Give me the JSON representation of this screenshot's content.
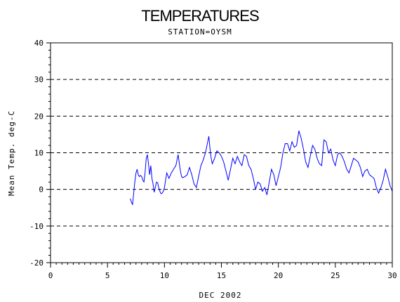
{
  "chart_data": {
    "type": "line",
    "title": "TEMPERATURES",
    "subtitle": "STATION=OYSM",
    "xlabel": "DEC 2002",
    "ylabel": "Mean Temp. deg-C",
    "xlim": [
      0,
      30
    ],
    "ylim": [
      -20,
      40
    ],
    "x_ticks": [
      0,
      5,
      10,
      15,
      20,
      25,
      30
    ],
    "x_tick_labels": [
      "0",
      "5",
      "10",
      "15",
      "20",
      "25",
      "30"
    ],
    "y_ticks": [
      -20,
      -10,
      0,
      10,
      20,
      30,
      40
    ],
    "y_tick_labels": [
      "-20",
      "-10",
      "0",
      "10",
      "20",
      "30",
      "40"
    ],
    "grid": "horizontal-dashed",
    "line_color": "#0000ff",
    "series": [
      {
        "x": [
          7.0,
          7.1,
          7.2,
          7.3,
          7.4,
          7.5,
          7.6,
          7.7,
          7.8,
          7.9,
          8.0,
          8.1,
          8.2,
          8.3,
          8.4,
          8.5,
          8.6,
          8.7,
          8.8,
          8.9,
          9.0,
          9.1,
          9.2,
          9.3,
          9.4,
          9.5,
          9.6,
          9.7,
          9.8,
          9.9,
          10.0,
          10.2,
          10.4,
          10.6,
          10.8,
          11.0,
          11.2,
          11.4,
          11.5,
          11.6,
          11.8,
          12.0,
          12.2,
          12.4,
          12.6,
          12.8,
          13.0,
          13.2,
          13.4,
          13.6,
          13.8,
          13.9,
          14.0,
          14.1,
          14.2,
          14.4,
          14.6,
          14.8,
          15.0,
          15.2,
          15.4,
          15.6,
          15.8,
          16.0,
          16.2,
          16.4,
          16.6,
          16.8,
          17.0,
          17.2,
          17.4,
          17.6,
          17.8,
          18.0,
          18.2,
          18.4,
          18.6,
          18.8,
          19.0,
          19.2,
          19.4,
          19.6,
          19.8,
          20.0,
          20.2,
          20.4,
          20.6,
          20.8,
          21.0,
          21.2,
          21.4,
          21.6,
          21.8,
          22.0,
          22.2,
          22.4,
          22.6,
          22.8,
          23.0,
          23.2,
          23.4,
          23.6,
          23.8,
          24.0,
          24.2,
          24.4,
          24.6,
          24.8,
          25.0,
          25.2,
          25.4,
          25.6,
          25.8,
          26.0,
          26.2,
          26.4,
          26.6,
          26.8,
          27.0,
          27.2,
          27.4,
          27.6,
          27.8,
          28.0,
          28.2,
          28.4,
          28.6,
          28.8,
          29.0,
          29.2,
          29.4,
          29.6,
          29.8,
          30.0
        ],
        "y": [
          -2.5,
          -3.5,
          -4.2,
          -1.0,
          2.0,
          4.5,
          5.5,
          4.0,
          3.5,
          3.8,
          3.5,
          2.5,
          2.0,
          4.5,
          8.5,
          9.5,
          7.0,
          4.0,
          6.5,
          3.0,
          1.5,
          -0.8,
          0.5,
          2.0,
          1.8,
          0.5,
          -0.5,
          -1.2,
          -1.0,
          -0.5,
          0.5,
          4.5,
          3.0,
          4.5,
          5.5,
          6.5,
          9.5,
          5.0,
          3.5,
          3.2,
          3.5,
          4.0,
          6.0,
          4.0,
          1.5,
          0.5,
          3.5,
          6.5,
          8.0,
          10.0,
          13.0,
          14.5,
          11.0,
          8.5,
          7.0,
          8.5,
          10.5,
          10.0,
          9.0,
          7.5,
          5.0,
          2.5,
          5.5,
          8.5,
          7.0,
          9.0,
          7.5,
          6.5,
          9.5,
          9.0,
          6.5,
          5.5,
          3.0,
          0.0,
          2.0,
          1.5,
          -0.5,
          0.5,
          -1.5,
          2.0,
          5.5,
          4.0,
          1.0,
          3.5,
          6.0,
          10.0,
          12.5,
          12.5,
          10.5,
          13.0,
          11.5,
          12.0,
          16.0,
          14.0,
          11.0,
          7.5,
          6.0,
          9.0,
          12.0,
          11.0,
          8.5,
          7.0,
          6.5,
          13.5,
          13.0,
          10.0,
          11.0,
          8.0,
          6.5,
          9.5,
          10.0,
          9.0,
          7.5,
          5.5,
          4.5,
          6.5,
          8.5,
          8.0,
          7.5,
          6.0,
          3.5,
          5.0,
          5.5,
          4.0,
          3.5,
          3.0,
          0.5,
          -1.0,
          0.5,
          2.5,
          5.5,
          3.5,
          1.0,
          -0.5
        ]
      }
    ]
  }
}
